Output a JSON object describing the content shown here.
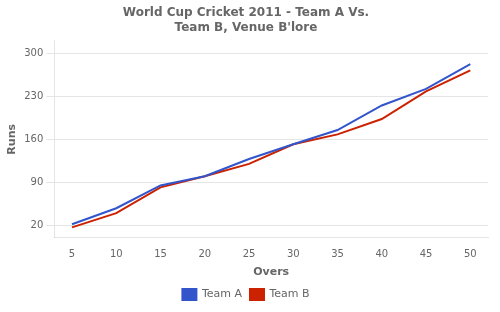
{
  "chart_data": {
    "type": "line",
    "title": "World Cup Cricket 2011 - Team A Vs.\nTeam B, Venue B'lore",
    "xlabel": "Overs",
    "ylabel": "Runs",
    "x": [
      5,
      10,
      15,
      20,
      25,
      30,
      35,
      40,
      45,
      50
    ],
    "series": [
      {
        "name": "Team A",
        "color": "#3355CC",
        "values": [
          22,
          48,
          85,
          100,
          128,
          152,
          175,
          215,
          242,
          282
        ]
      },
      {
        "name": "Team B",
        "color": "#CC2200",
        "values": [
          17,
          40,
          82,
          100,
          120,
          152,
          168,
          193,
          238,
          272
        ]
      }
    ],
    "xlim": [
      3,
      52
    ],
    "xticks": [
      5,
      10,
      15,
      20,
      25,
      30,
      35,
      40,
      45,
      50
    ],
    "ylim": [
      0,
      320
    ],
    "yticks": [
      20,
      90,
      160,
      230,
      300
    ],
    "grid": true,
    "legend": "bottom"
  }
}
